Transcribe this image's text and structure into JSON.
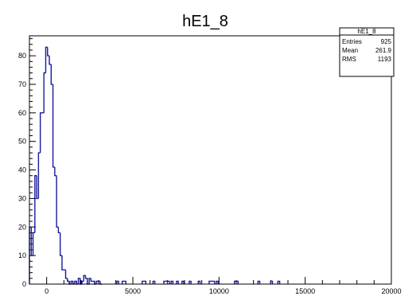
{
  "chart_data": {
    "type": "histogram",
    "title": "hE1_8",
    "xlabel": "",
    "ylabel": "",
    "xlim": [
      -1000,
      20000
    ],
    "ylim": [
      0,
      87
    ],
    "x_ticks": [
      {
        "value": 0,
        "label": "0"
      },
      {
        "value": 5000,
        "label": "5000"
      },
      {
        "value": 10000,
        "label": "10000"
      },
      {
        "value": 15000,
        "label": "15000"
      },
      {
        "value": 20000,
        "label": "20000"
      }
    ],
    "y_ticks": [
      {
        "value": 0,
        "label": "0"
      },
      {
        "value": 10,
        "label": "10"
      },
      {
        "value": 20,
        "label": "20"
      },
      {
        "value": 30,
        "label": "30"
      },
      {
        "value": 40,
        "label": "40"
      },
      {
        "value": 50,
        "label": "50"
      },
      {
        "value": 60,
        "label": "60"
      },
      {
        "value": 70,
        "label": "70"
      },
      {
        "value": 80,
        "label": "80"
      }
    ],
    "bin_width": 105,
    "bins_start": [
      -1000,
      -895,
      -790,
      -685,
      -580,
      -475,
      -370,
      -265,
      -160,
      -55,
      50,
      155,
      260,
      365,
      470,
      575,
      680,
      785,
      890,
      995,
      1100,
      1205,
      1310,
      1415,
      1520,
      1625,
      1730,
      1835,
      1940,
      2045,
      2150,
      2255,
      2360,
      2465,
      2570,
      2675,
      2780,
      2885,
      2990,
      3095,
      4070,
      4385,
      4490,
      5540,
      5645,
      6170,
      6800,
      6905,
      7010,
      7220,
      7535,
      7850,
      8270,
      8795,
      9425,
      9530,
      9635,
      9845,
      10895,
      11000,
      12260,
      12995,
      13415
    ],
    "counts": [
      20,
      10,
      18,
      38,
      30,
      46,
      60,
      60,
      74,
      83,
      80,
      77,
      70,
      41,
      38,
      20,
      18,
      10,
      5,
      5,
      2,
      1,
      0,
      1,
      0,
      1,
      0,
      2,
      0,
      1,
      3,
      2,
      0,
      2,
      1,
      1,
      0,
      1,
      1,
      0,
      1,
      1,
      1,
      1,
      1,
      1,
      1,
      1,
      1,
      1,
      1,
      1,
      1,
      1,
      1,
      1,
      1,
      1,
      1,
      1,
      1,
      1,
      1
    ],
    "stats_box": {
      "title": "hE1_8",
      "rows": [
        {
          "label": "Entries",
          "value": "925"
        },
        {
          "label": "Mean",
          "value": "261.9"
        },
        {
          "label": "RMS",
          "value": "1193"
        }
      ]
    },
    "line_color": "#1a1a9c",
    "grid": false,
    "legend_position": "top-right"
  }
}
